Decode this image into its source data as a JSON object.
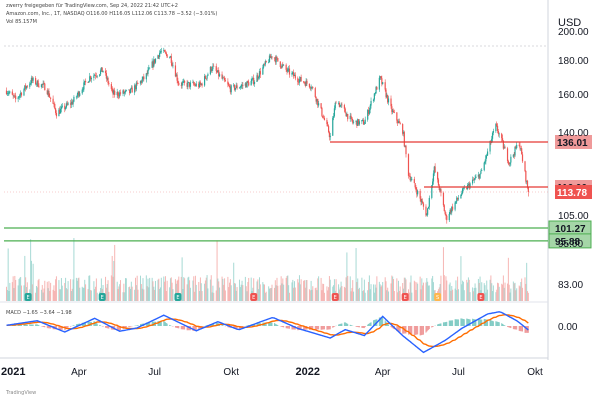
{
  "header": {
    "line1": "zwerry freigegeben für TradingView.com, Sep 24, 2022 21:42 UTC+2",
    "line2": "Amazon.com, Inc., 1T, NASDAQ  O116.00  H116.05  L112.06  C113.78  −3.52 (−3.01%)",
    "line3": "Vol  85.157M"
  },
  "macd_label": "MACD  −1.65  −3.64  −1.98",
  "footer": "TradingView",
  "currency": "USD",
  "colors": {
    "up": "#26a69a",
    "down": "#ef5350",
    "support": "#4caf50",
    "resistance": "#e53935",
    "macd": "#2962ff",
    "signal": "#ff6d00"
  },
  "chart_data": {
    "type": "candlestick",
    "x_tick_labels": [
      "2021",
      "Apr",
      "Jul",
      "Okt",
      "2022",
      "Apr",
      "Jul",
      "Okt"
    ],
    "y_tick_labels": [
      "200.00",
      "180.00",
      "160.00",
      "140.00",
      "105.00",
      "95.00",
      "83.00"
    ],
    "macd_tick_label": "0.00",
    "levels": [
      {
        "label": "136.01",
        "value": 136.01,
        "kind": "resistance"
      },
      {
        "label": "116.00",
        "value": 116.0,
        "kind": "resistance"
      },
      {
        "label": "113.78",
        "value": 113.78,
        "kind": "last-price"
      },
      {
        "label": "101.27",
        "value": 101.27,
        "kind": "support"
      },
      {
        "label": "95.88",
        "value": 95.88,
        "kind": "support"
      }
    ],
    "price_path": [
      {
        "date": "2021-01-04",
        "price": 162
      },
      {
        "date": "2021-01-15",
        "price": 157
      },
      {
        "date": "2021-02-03",
        "price": 168
      },
      {
        "date": "2021-02-20",
        "price": 164
      },
      {
        "date": "2021-03-05",
        "price": 150
      },
      {
        "date": "2021-03-25",
        "price": 156
      },
      {
        "date": "2021-04-14",
        "price": 170
      },
      {
        "date": "2021-04-30",
        "price": 174
      },
      {
        "date": "2021-05-12",
        "price": 160
      },
      {
        "date": "2021-06-01",
        "price": 161
      },
      {
        "date": "2021-06-20",
        "price": 170
      },
      {
        "date": "2021-07-08",
        "price": 186
      },
      {
        "date": "2021-07-20",
        "price": 182
      },
      {
        "date": "2021-07-30",
        "price": 166
      },
      {
        "date": "2021-08-25",
        "price": 165
      },
      {
        "date": "2021-09-08",
        "price": 176
      },
      {
        "date": "2021-09-30",
        "price": 163
      },
      {
        "date": "2021-10-15",
        "price": 165
      },
      {
        "date": "2021-10-29",
        "price": 168
      },
      {
        "date": "2021-11-19",
        "price": 183
      },
      {
        "date": "2021-12-06",
        "price": 174
      },
      {
        "date": "2021-12-20",
        "price": 169
      },
      {
        "date": "2022-01-05",
        "price": 165
      },
      {
        "date": "2022-01-28",
        "price": 138
      },
      {
        "date": "2022-02-04",
        "price": 157
      },
      {
        "date": "2022-02-24",
        "price": 145
      },
      {
        "date": "2022-03-10",
        "price": 145
      },
      {
        "date": "2022-03-29",
        "price": 169
      },
      {
        "date": "2022-04-11",
        "price": 152
      },
      {
        "date": "2022-04-25",
        "price": 141
      },
      {
        "date": "2022-05-02",
        "price": 122
      },
      {
        "date": "2022-05-24",
        "price": 105
      },
      {
        "date": "2022-06-02",
        "price": 124
      },
      {
        "date": "2022-06-16",
        "price": 104
      },
      {
        "date": "2022-07-06",
        "price": 114
      },
      {
        "date": "2022-07-28",
        "price": 122
      },
      {
        "date": "2022-08-15",
        "price": 143
      },
      {
        "date": "2022-08-31",
        "price": 127
      },
      {
        "date": "2022-09-12",
        "price": 136
      },
      {
        "date": "2022-09-23",
        "price": 113.78
      }
    ],
    "events": [
      {
        "date": "2021-01-30",
        "type": "E"
      },
      {
        "date": "2021-04-29",
        "type": "E"
      },
      {
        "date": "2021-07-29",
        "type": "E"
      },
      {
        "date": "2021-10-28",
        "type": "E"
      },
      {
        "date": "2022-02-03",
        "type": "E"
      },
      {
        "date": "2022-04-28",
        "type": "E"
      },
      {
        "date": "2022-06-06",
        "type": "S"
      },
      {
        "date": "2022-07-28",
        "type": "E"
      }
    ],
    "macd_path": [
      {
        "date": "2021-01-04",
        "macd": 0.3
      },
      {
        "date": "2021-02-10",
        "macd": 2.2
      },
      {
        "date": "2021-03-15",
        "macd": -2.5
      },
      {
        "date": "2021-04-20",
        "macd": 3.2
      },
      {
        "date": "2021-05-20",
        "macd": -2.2
      },
      {
        "date": "2021-06-10",
        "macd": -0.8
      },
      {
        "date": "2021-07-12",
        "macd": 4.5
      },
      {
        "date": "2021-08-20",
        "macd": -2.0
      },
      {
        "date": "2021-09-15",
        "macd": 1.8
      },
      {
        "date": "2021-10-10",
        "macd": -1.6
      },
      {
        "date": "2021-11-20",
        "macd": 3.6
      },
      {
        "date": "2021-12-20",
        "macd": -1.0
      },
      {
        "date": "2022-01-28",
        "macd": -5.0
      },
      {
        "date": "2022-02-15",
        "macd": -1.5
      },
      {
        "date": "2022-03-10",
        "macd": -4.0
      },
      {
        "date": "2022-04-01",
        "macd": 4.0
      },
      {
        "date": "2022-04-25",
        "macd": -4.0
      },
      {
        "date": "2022-05-20",
        "macd": -11.0
      },
      {
        "date": "2022-06-15",
        "macd": -6.0
      },
      {
        "date": "2022-07-05",
        "macd": -1.0
      },
      {
        "date": "2022-08-05",
        "macd": 5.0
      },
      {
        "date": "2022-08-20",
        "macd": 6.0
      },
      {
        "date": "2022-09-10",
        "macd": 2.0
      },
      {
        "date": "2022-09-23",
        "macd": -1.65
      }
    ]
  }
}
